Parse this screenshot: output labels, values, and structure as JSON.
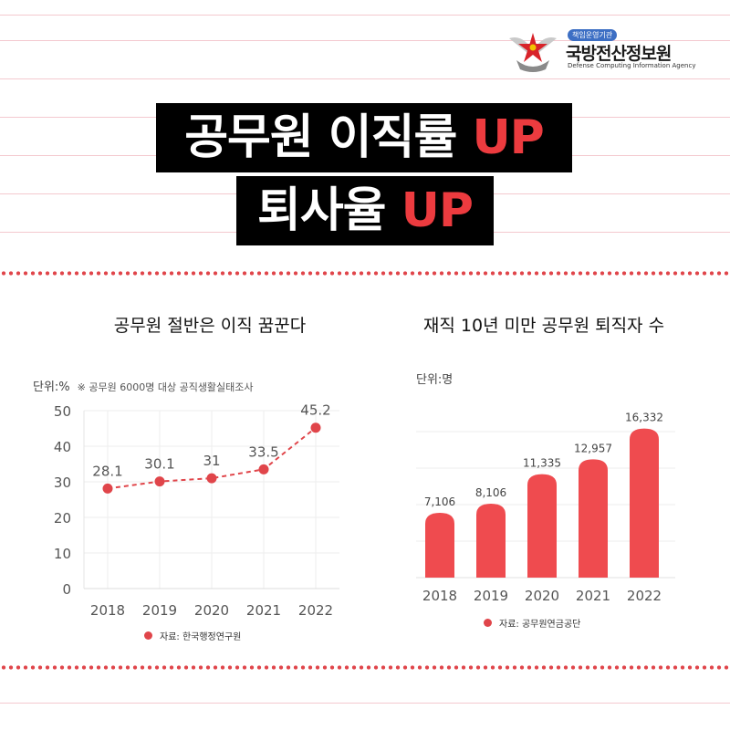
{
  "logo": {
    "badge": "책임운영기관",
    "name": "국방전산정보원",
    "english_name": "Defense Computing Information Agency"
  },
  "headline": {
    "line1_text": "공무원 이직률",
    "line1_highlight": "UP",
    "line2_text": "퇴사율",
    "line2_highlight": "UP"
  },
  "colors": {
    "accent": "#e0454a",
    "headline_bg": "#000000",
    "highlight": "#ec3b3f"
  },
  "left_chart": {
    "unit": "단위:%",
    "note": "※ 공무원 6000명 대상 공직생활실태조사",
    "source": "자료: 한국행정연구원"
  },
  "right_chart": {
    "unit": "단위:명",
    "source": "자료: 공무원연금공단"
  },
  "chart_data": [
    {
      "type": "line",
      "title": "공무원 절반은 이직 꿈꾼다",
      "x": [
        "2018",
        "2019",
        "2020",
        "2021",
        "2022"
      ],
      "values": [
        28.1,
        30.1,
        31,
        33.5,
        45.2
      ],
      "data_labels": [
        "28.1",
        "30.1",
        "31",
        "33.5",
        "45.2"
      ],
      "y_ticks": [
        "0",
        "10",
        "20",
        "30",
        "40",
        "50"
      ],
      "ylim": [
        0,
        50
      ],
      "grid": true,
      "line_style": "dashed",
      "color": "#e0454a"
    },
    {
      "type": "bar",
      "title": "재직 10년 미만 공무원 퇴직자 수",
      "categories": [
        "2018",
        "2019",
        "2020",
        "2021",
        "2022"
      ],
      "values": [
        7106,
        8106,
        11335,
        12957,
        16332
      ],
      "data_labels": [
        "7,106",
        "8,106",
        "11,335",
        "12,957",
        "16,332"
      ],
      "ylim": [
        0,
        16500
      ],
      "grid": true,
      "color": "#ef4b4f"
    }
  ]
}
